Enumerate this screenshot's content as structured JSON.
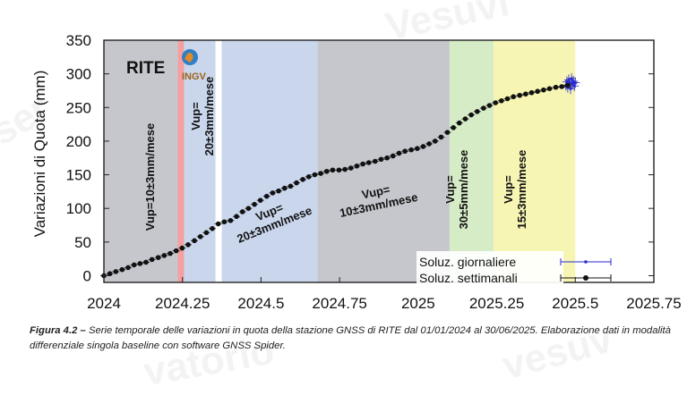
{
  "watermarks": [
    "Vesuvi",
    "ser",
    "vatorio",
    "vesuv"
  ],
  "caption": {
    "label": "Figura 4.2 – ",
    "text": "Serie temporale delle variazioni in quota della stazione GNSS di RITE dal 01/01/2024 al 30/06/2025. Elaborazione dati in modalità differenziale singola baseline con software GNSS Spider."
  },
  "chart_data": {
    "type": "scatter",
    "station": "RITE",
    "logo_text": "INGV",
    "ylabel": "Variazioni di Quota (mm)",
    "xlabel": "",
    "xlim": [
      2024,
      2025.75
    ],
    "ylim": [
      -10,
      350
    ],
    "x_ticks": [
      "2024",
      "2024.25",
      "2024.5",
      "2024.75",
      "2025",
      "2025.25",
      "2025.5",
      "2025.75"
    ],
    "x_tick_values": [
      2024,
      2024.25,
      2024.5,
      2024.75,
      2025,
      2025.25,
      2025.5,
      2025.75
    ],
    "y_ticks": [
      "0",
      "50",
      "100",
      "150",
      "200",
      "250",
      "300",
      "350"
    ],
    "y_tick_values": [
      0,
      50,
      100,
      150,
      200,
      250,
      300,
      350
    ],
    "shaded_periods": [
      {
        "x0": 2024.0,
        "x1": 2024.235,
        "color": "#c5c7cc",
        "rate": "Vup=10±3mm/mese"
      },
      {
        "x0": 2024.235,
        "x1": 2024.255,
        "color": "#f2a0a0",
        "rate": ""
      },
      {
        "x0": 2024.255,
        "x1": 2024.355,
        "color": "#c9d6ec",
        "rate": "Vup= 20±3mm/mese"
      },
      {
        "x0": 2024.375,
        "x1": 2024.68,
        "color": "#c9d6ec",
        "rate": "Vup= 20±3mm/mese"
      },
      {
        "x0": 2024.68,
        "x1": 2025.1,
        "color": "#c5c7cc",
        "rate": "Vup= 10±3mm/mese"
      },
      {
        "x0": 2025.1,
        "x1": 2025.24,
        "color": "#d6ecc6",
        "rate": "Vup= 30±5mm/mese"
      },
      {
        "x0": 2025.24,
        "x1": 2025.5,
        "color": "#f7f5b4",
        "rate": "Vup= 15±3mm/mese"
      }
    ],
    "legend": {
      "position": "bottom-right",
      "entries": [
        "Soluz. giornaliere",
        "Soluz. settimanali"
      ]
    },
    "series": [
      {
        "name": "Soluz. settimanali",
        "color": "#111111",
        "x": [
          2024.0,
          2024.019,
          2024.038,
          2024.058,
          2024.077,
          2024.096,
          2024.115,
          2024.134,
          2024.153,
          2024.173,
          2024.192,
          2024.211,
          2024.23,
          2024.249,
          2024.268,
          2024.288,
          2024.307,
          2024.326,
          2024.345,
          2024.364,
          2024.383,
          2024.403,
          2024.422,
          2024.441,
          2024.46,
          2024.479,
          2024.498,
          2024.518,
          2024.537,
          2024.556,
          2024.575,
          2024.594,
          2024.613,
          2024.633,
          2024.652,
          2024.671,
          2024.69,
          2024.709,
          2024.728,
          2024.748,
          2024.767,
          2024.786,
          2024.805,
          2024.824,
          2024.843,
          2024.863,
          2024.882,
          2024.901,
          2024.92,
          2024.939,
          2024.958,
          2024.978,
          2024.997,
          2025.016,
          2025.035,
          2025.054,
          2025.073,
          2025.093,
          2025.112,
          2025.131,
          2025.15,
          2025.169,
          2025.188,
          2025.208,
          2025.227,
          2025.246,
          2025.265,
          2025.284,
          2025.303,
          2025.323,
          2025.342,
          2025.361,
          2025.38,
          2025.399,
          2025.418,
          2025.438,
          2025.457,
          2025.476
        ],
        "y": [
          0,
          3,
          6,
          9,
          12,
          16,
          18,
          20,
          24,
          27,
          30,
          33,
          37,
          41,
          46,
          52,
          58,
          64,
          70,
          77,
          80,
          82,
          88,
          95,
          100,
          106,
          112,
          118,
          123,
          126,
          130,
          133,
          138,
          143,
          147,
          150,
          152,
          155,
          157,
          157,
          158,
          160,
          163,
          166,
          168,
          170,
          173,
          175,
          178,
          182,
          185,
          187,
          189,
          192,
          196,
          200,
          206,
          213,
          220,
          227,
          233,
          239,
          244,
          249,
          253,
          257,
          260,
          263,
          266,
          268,
          270,
          272,
          274,
          276,
          278,
          280,
          281,
          283
        ]
      },
      {
        "name": "Soluz. giornaliere",
        "color": "#2a2ad0",
        "x": [
          2025.47,
          2025.473,
          2025.476,
          2025.479,
          2025.482,
          2025.485,
          2025.488,
          2025.491,
          2025.494,
          2025.497,
          2025.5
        ],
        "y": [
          283,
          288,
          280,
          291,
          286,
          278,
          293,
          285,
          289,
          282,
          287
        ]
      }
    ]
  }
}
